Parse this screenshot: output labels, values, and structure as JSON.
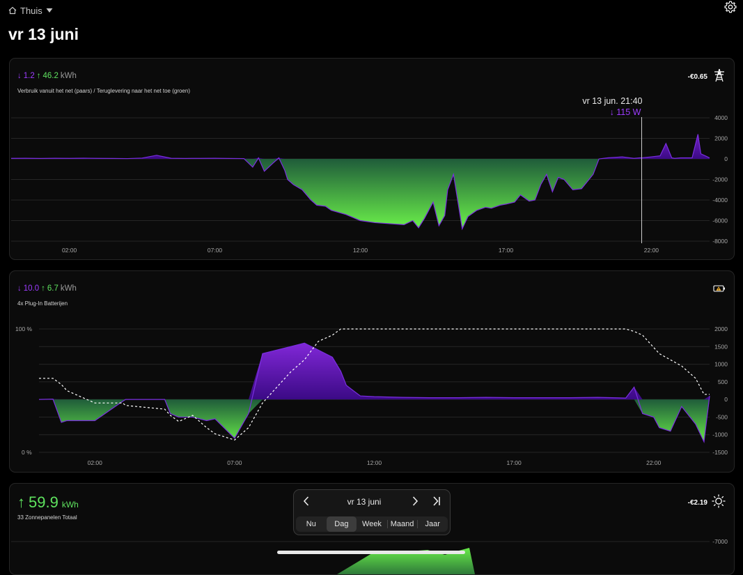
{
  "header": {
    "home_label": "Thuis",
    "date_title": "vr 13 juni",
    "home_icon": "home-icon",
    "settings_icon": "gear-icon"
  },
  "grid_card": {
    "import_value": "1.2",
    "export_value": "46.2",
    "unit": "kWh",
    "subtitle": "Verbruik vanuit het net (paars) / Teruglevering naar het net toe (groen)",
    "price": "-€0.65",
    "icon": "power-pylon-icon",
    "tooltip": {
      "time": "vr 13 jun. 21:40",
      "value": "115 W"
    }
  },
  "battery_card": {
    "charge_value": "10.0",
    "discharge_value": "6.7",
    "unit": "kWh",
    "subtitle": "4x Plug-In Batterijen",
    "icon": "battery-warning-icon",
    "soc_top_label": "100 %",
    "soc_bottom_label": "0 %"
  },
  "solar_card": {
    "total_value": "59.9",
    "unit": "kWh",
    "subtitle": "33 Zonnepanelen Totaal",
    "price": "-€2.19",
    "icon": "sun-icon"
  },
  "date_picker": {
    "date_label": "vr 13 juni",
    "tabs": [
      "Nu",
      "Dag",
      "Week",
      "Maand",
      "Jaar"
    ],
    "active_tab": "Dag"
  },
  "colors": {
    "purple": "#9d3cff",
    "green": "#5fe35f",
    "background": "#000000"
  },
  "chart_data": [
    {
      "type": "area",
      "name": "grid",
      "x_unit": "hour",
      "x_ticks": [
        "02:00",
        "07:00",
        "12:00",
        "17:00",
        "22:00"
      ],
      "y_ticks": [
        4000,
        2000,
        0,
        -2000,
        -4000,
        -6000,
        -8000
      ],
      "ylim": [
        -8000,
        4000
      ],
      "x": [
        0,
        0.5,
        1,
        1.5,
        2,
        2.5,
        3,
        3.5,
        4,
        4.5,
        5,
        5.5,
        6,
        6.2,
        6.5,
        7,
        7.5,
        8,
        8.3,
        8.5,
        8.7,
        9,
        9.2,
        9.4,
        9.5,
        9.7,
        10,
        10.3,
        10.5,
        10.8,
        11,
        11.5,
        12,
        12.5,
        13,
        13.5,
        13.8,
        14,
        14.2,
        14.5,
        14.7,
        14.9,
        15,
        15.2,
        15.4,
        15.5,
        15.7,
        16,
        16.3,
        16.5,
        16.8,
        17,
        17.3,
        17.5,
        17.8,
        18,
        18.2,
        18.4,
        18.6,
        18.8,
        19,
        19.3,
        19.6,
        20,
        20.2,
        20.5,
        21,
        21.4,
        21.6,
        21.7,
        22,
        22.3,
        22.5,
        22.7,
        22.8,
        23,
        23.4,
        23.6,
        23.7,
        24
      ],
      "y": [
        50,
        60,
        40,
        60,
        50,
        70,
        50,
        40,
        30,
        80,
        350,
        60,
        40,
        50,
        50,
        60,
        40,
        30,
        -800,
        100,
        -1200,
        -400,
        100,
        -1100,
        -2000,
        -2500,
        -3000,
        -4000,
        -4500,
        -4600,
        -5000,
        -5400,
        -6000,
        -6200,
        -6300,
        -6400,
        -6000,
        -6700,
        -5800,
        -4200,
        -6500,
        -5500,
        -3000,
        -1500,
        -5000,
        -6800,
        -5600,
        -5000,
        -4700,
        -4800,
        -4500,
        -4400,
        -4200,
        -3500,
        -4100,
        -4000,
        -2500,
        -1500,
        -3200,
        -1800,
        -2000,
        -3000,
        -2900,
        -1500,
        0,
        100,
        200,
        50,
        100,
        115,
        200,
        300,
        1500,
        100,
        50,
        100,
        100,
        2400,
        500,
        100
      ]
    },
    {
      "type": "area",
      "name": "battery",
      "x_unit": "hour",
      "x_ticks": [
        "02:00",
        "07:00",
        "12:00",
        "17:00",
        "22:00"
      ],
      "y_ticks": [
        2000,
        1500,
        1000,
        500,
        0,
        -500,
        -1000,
        -1500
      ],
      "ylim": [
        -1500,
        2000
      ],
      "soc_ylim": [
        0,
        100
      ],
      "x": [
        0,
        0.5,
        0.8,
        1,
        2,
        3,
        3.1,
        4.5,
        4.7,
        5,
        5.5,
        6,
        6.3,
        7,
        7.5,
        8,
        9,
        9.5,
        10,
        10.5,
        10.8,
        11,
        11.5,
        12,
        13,
        14,
        15,
        16,
        17,
        18,
        19,
        20,
        21,
        21.3,
        21.6,
        22,
        22.2,
        22.6,
        23,
        23.5,
        23.8,
        24
      ],
      "y": [
        0,
        10,
        -650,
        -600,
        -600,
        -50,
        0,
        0,
        -400,
        -500,
        -500,
        -600,
        -550,
        -1100,
        -400,
        1300,
        1500,
        1600,
        1400,
        1200,
        800,
        400,
        100,
        80,
        60,
        50,
        50,
        60,
        50,
        50,
        50,
        60,
        40,
        350,
        -400,
        -500,
        -800,
        -900,
        -200,
        -700,
        -1200,
        100
      ],
      "soc": [
        60,
        60,
        55,
        50,
        40,
        40,
        38,
        35,
        30,
        25,
        30,
        20,
        15,
        10,
        20,
        40,
        65,
        75,
        90,
        95,
        100,
        100,
        100,
        100,
        100,
        100,
        100,
        100,
        100,
        100,
        100,
        100,
        100,
        98,
        95,
        85,
        80,
        75,
        70,
        60,
        47,
        47
      ]
    },
    {
      "type": "area",
      "name": "solar",
      "x_unit": "hour",
      "y_ticks": [
        -7000
      ],
      "ylim": [
        -8000,
        0
      ]
    }
  ]
}
